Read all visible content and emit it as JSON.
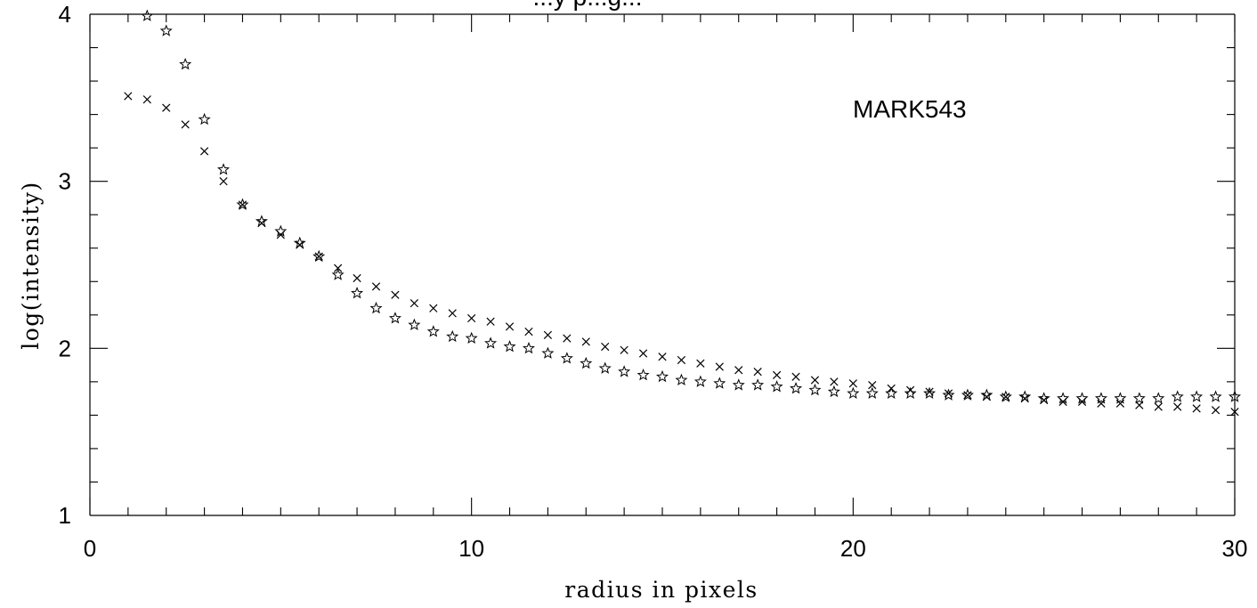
{
  "chart_data": {
    "type": "scatter",
    "title": "...y p...g...",
    "xlabel": "radius in pixels",
    "ylabel": "log(intensity)",
    "annotation": "MARK543",
    "xlim": [
      0,
      30
    ],
    "ylim": [
      1,
      4
    ],
    "xticks": [
      0,
      10,
      20,
      30
    ],
    "yticks": [
      1,
      2,
      3,
      4
    ],
    "x_tick_labels": [
      "0",
      "10",
      "20",
      "30"
    ],
    "y_tick_labels": [
      "1",
      "2",
      "3",
      "4"
    ],
    "grid": false,
    "series": [
      {
        "marker": "cross",
        "points": [
          [
            1.0,
            3.51
          ],
          [
            1.5,
            3.49
          ],
          [
            2.0,
            3.44
          ],
          [
            2.5,
            3.34
          ],
          [
            3.0,
            3.18
          ],
          [
            3.5,
            3.0
          ],
          [
            4.0,
            2.86
          ],
          [
            4.5,
            2.75
          ],
          [
            5.0,
            2.68
          ],
          [
            5.5,
            2.62
          ],
          [
            6.0,
            2.55
          ],
          [
            6.5,
            2.48
          ],
          [
            7.0,
            2.42
          ],
          [
            7.5,
            2.37
          ],
          [
            8.0,
            2.32
          ],
          [
            8.5,
            2.27
          ],
          [
            9.0,
            2.24
          ],
          [
            9.5,
            2.21
          ],
          [
            10.0,
            2.18
          ],
          [
            10.5,
            2.16
          ],
          [
            11.0,
            2.13
          ],
          [
            11.5,
            2.1
          ],
          [
            12.0,
            2.08
          ],
          [
            12.5,
            2.06
          ],
          [
            13.0,
            2.04
          ],
          [
            13.5,
            2.01
          ],
          [
            14.0,
            1.99
          ],
          [
            14.5,
            1.97
          ],
          [
            15.0,
            1.95
          ],
          [
            15.5,
            1.93
          ],
          [
            16.0,
            1.91
          ],
          [
            16.5,
            1.89
          ],
          [
            17.0,
            1.87
          ],
          [
            17.5,
            1.86
          ],
          [
            18.0,
            1.84
          ],
          [
            18.5,
            1.83
          ],
          [
            19.0,
            1.81
          ],
          [
            19.5,
            1.8
          ],
          [
            20.0,
            1.79
          ],
          [
            20.5,
            1.78
          ],
          [
            21.0,
            1.76
          ],
          [
            21.5,
            1.75
          ],
          [
            22.0,
            1.74
          ],
          [
            22.5,
            1.73
          ],
          [
            23.0,
            1.72
          ],
          [
            23.5,
            1.71
          ],
          [
            24.0,
            1.71
          ],
          [
            24.5,
            1.7
          ],
          [
            25.0,
            1.69
          ],
          [
            25.5,
            1.68
          ],
          [
            26.0,
            1.68
          ],
          [
            26.5,
            1.67
          ],
          [
            27.0,
            1.67
          ],
          [
            27.5,
            1.66
          ],
          [
            28.0,
            1.65
          ],
          [
            28.5,
            1.65
          ],
          [
            29.0,
            1.64
          ],
          [
            29.5,
            1.63
          ],
          [
            30.0,
            1.62
          ]
        ]
      },
      {
        "marker": "star",
        "points": [
          [
            1.5,
            3.99
          ],
          [
            2.0,
            3.9
          ],
          [
            2.5,
            3.7
          ],
          [
            3.0,
            3.37
          ],
          [
            3.5,
            3.07
          ],
          [
            4.0,
            2.86
          ],
          [
            4.5,
            2.76
          ],
          [
            5.0,
            2.7
          ],
          [
            5.5,
            2.63
          ],
          [
            6.0,
            2.55
          ],
          [
            6.5,
            2.44
          ],
          [
            7.0,
            2.33
          ],
          [
            7.5,
            2.24
          ],
          [
            8.0,
            2.18
          ],
          [
            8.5,
            2.14
          ],
          [
            9.0,
            2.1
          ],
          [
            9.5,
            2.07
          ],
          [
            10.0,
            2.06
          ],
          [
            10.5,
            2.03
          ],
          [
            11.0,
            2.01
          ],
          [
            11.5,
            2.0
          ],
          [
            12.0,
            1.97
          ],
          [
            12.5,
            1.94
          ],
          [
            13.0,
            1.91
          ],
          [
            13.5,
            1.88
          ],
          [
            14.0,
            1.86
          ],
          [
            14.5,
            1.84
          ],
          [
            15.0,
            1.83
          ],
          [
            15.5,
            1.81
          ],
          [
            16.0,
            1.8
          ],
          [
            16.5,
            1.79
          ],
          [
            17.0,
            1.78
          ],
          [
            17.5,
            1.78
          ],
          [
            18.0,
            1.77
          ],
          [
            18.5,
            1.76
          ],
          [
            19.0,
            1.75
          ],
          [
            19.5,
            1.74
          ],
          [
            20.0,
            1.73
          ],
          [
            20.5,
            1.73
          ],
          [
            21.0,
            1.73
          ],
          [
            21.5,
            1.73
          ],
          [
            22.0,
            1.73
          ],
          [
            22.5,
            1.72
          ],
          [
            23.0,
            1.72
          ],
          [
            23.5,
            1.72
          ],
          [
            24.0,
            1.71
          ],
          [
            24.5,
            1.71
          ],
          [
            25.0,
            1.7
          ],
          [
            25.5,
            1.7
          ],
          [
            26.0,
            1.7
          ],
          [
            26.5,
            1.7
          ],
          [
            27.0,
            1.7
          ],
          [
            27.5,
            1.7
          ],
          [
            28.0,
            1.7
          ],
          [
            28.5,
            1.71
          ],
          [
            29.0,
            1.71
          ],
          [
            29.5,
            1.71
          ],
          [
            30.0,
            1.71
          ]
        ]
      }
    ]
  }
}
